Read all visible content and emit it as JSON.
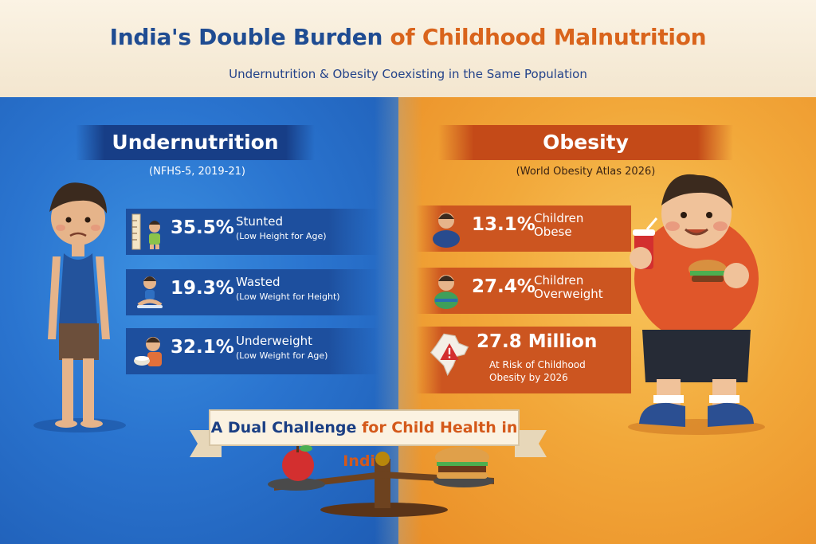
{
  "header": {
    "title_part1": "India's Double Burden",
    "title_part2": "of Childhood Malnutrition",
    "subtitle": "Undernutrition & Obesity Coexisting in the Same Population"
  },
  "left": {
    "heading": "Undernutrition",
    "source": "(NFHS-5, 2019-21)",
    "accent": "#1d4f9e",
    "stats": [
      {
        "value": "35.5%",
        "label": "Stunted",
        "sublabel": "(Low Height for Age)",
        "icon": "height-chart-icon"
      },
      {
        "value": "19.3%",
        "label": "Wasted",
        "sublabel": "(Low Weight for Height)",
        "icon": "thin-child-icon"
      },
      {
        "value": "32.1%",
        "label": "Underweight",
        "sublabel": "(Low Weight for Age)",
        "icon": "child-eating-icon"
      }
    ]
  },
  "right": {
    "heading": "Obesity",
    "source": "(World Obesity Atlas 2026)",
    "accent": "#cc5520",
    "stats": [
      {
        "value": "13.1%",
        "label": "Children",
        "label2": "Obese",
        "icon": "obese-child-icon"
      },
      {
        "value": "27.4%",
        "label": "Children",
        "label2": "Overweight",
        "icon": "overweight-child-icon"
      },
      {
        "value": "27.8 Million",
        "label": "At Risk of Childhood",
        "label2": "Obesity by 2026",
        "icon": "india-map-warning-icon"
      }
    ]
  },
  "ribbon": {
    "part1": "A Dual Challenge",
    "part2": "for Child Health in India"
  }
}
